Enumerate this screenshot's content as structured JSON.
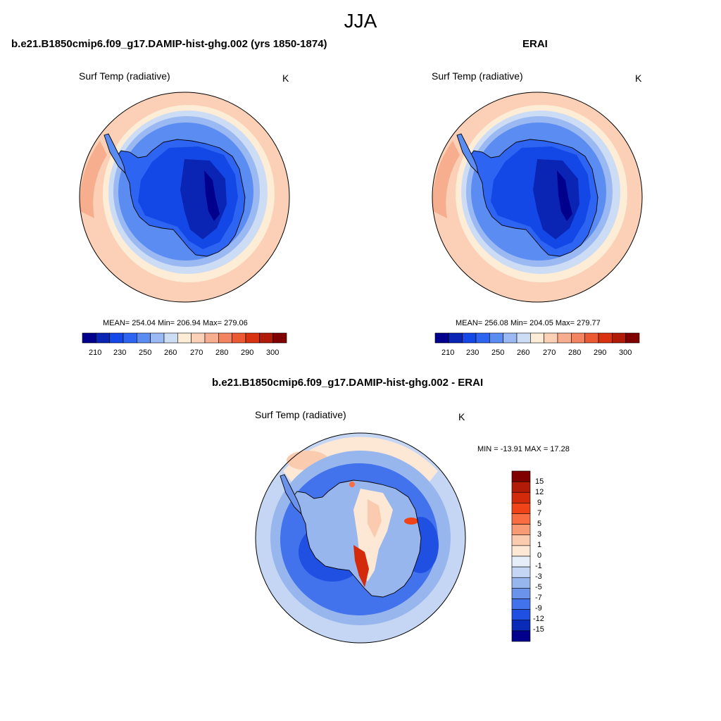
{
  "title": "JJA",
  "colors": {
    "abs_scale": [
      "#00008c",
      "#0a24b4",
      "#1448e6",
      "#2e64f2",
      "#5a8cf2",
      "#9ab8f2",
      "#cddcf5",
      "#fdecd6",
      "#fbd0b6",
      "#f7ae8e",
      "#f28462",
      "#ec5a34",
      "#d83210",
      "#b01c08",
      "#800000"
    ],
    "diff_scale": [
      "#800000",
      "#b01c08",
      "#d42a0c",
      "#f04418",
      "#f86e42",
      "#f89a74",
      "#fbcbb0",
      "#fde8d6",
      "#e6eef9",
      "#c4d6f3",
      "#98b6ee",
      "#6c93ec",
      "#4272ec",
      "#2050e2",
      "#0a2ab8",
      "#00008c"
    ]
  },
  "panels": [
    {
      "title": "b.e21.B1850cmip6.f09_g17.DAMIP-hist-ghg.002 (yrs 1850-1874)",
      "label_left": "Surf Temp (radiative)",
      "label_right": "K",
      "stats": "MEAN= 254.04  Min= 206.94  Max= 279.06",
      "colorbar_ticks": [
        "210",
        "230",
        "250",
        "260",
        "270",
        "280",
        "290",
        "300"
      ]
    },
    {
      "title": "ERAI",
      "label_left": "Surf Temp (radiative)",
      "label_right": "K",
      "stats": "MEAN= 256.08  Min= 204.05  Max= 279.77",
      "colorbar_ticks": [
        "210",
        "230",
        "250",
        "260",
        "270",
        "280",
        "290",
        "300"
      ]
    },
    {
      "title": "b.e21.B1850cmip6.f09_g17.DAMIP-hist-ghg.002 - ERAI",
      "label_left": "Surf Temp (radiative)",
      "label_right": "K",
      "stats": "MIN = -13.91 MAX =  17.28",
      "colorbar_ticks": [
        "15",
        "12",
        "9",
        "7",
        "5",
        "3",
        "1",
        "0",
        "-1",
        "-3",
        "-5",
        "-7",
        "-9",
        "-12",
        "-15"
      ]
    }
  ]
}
